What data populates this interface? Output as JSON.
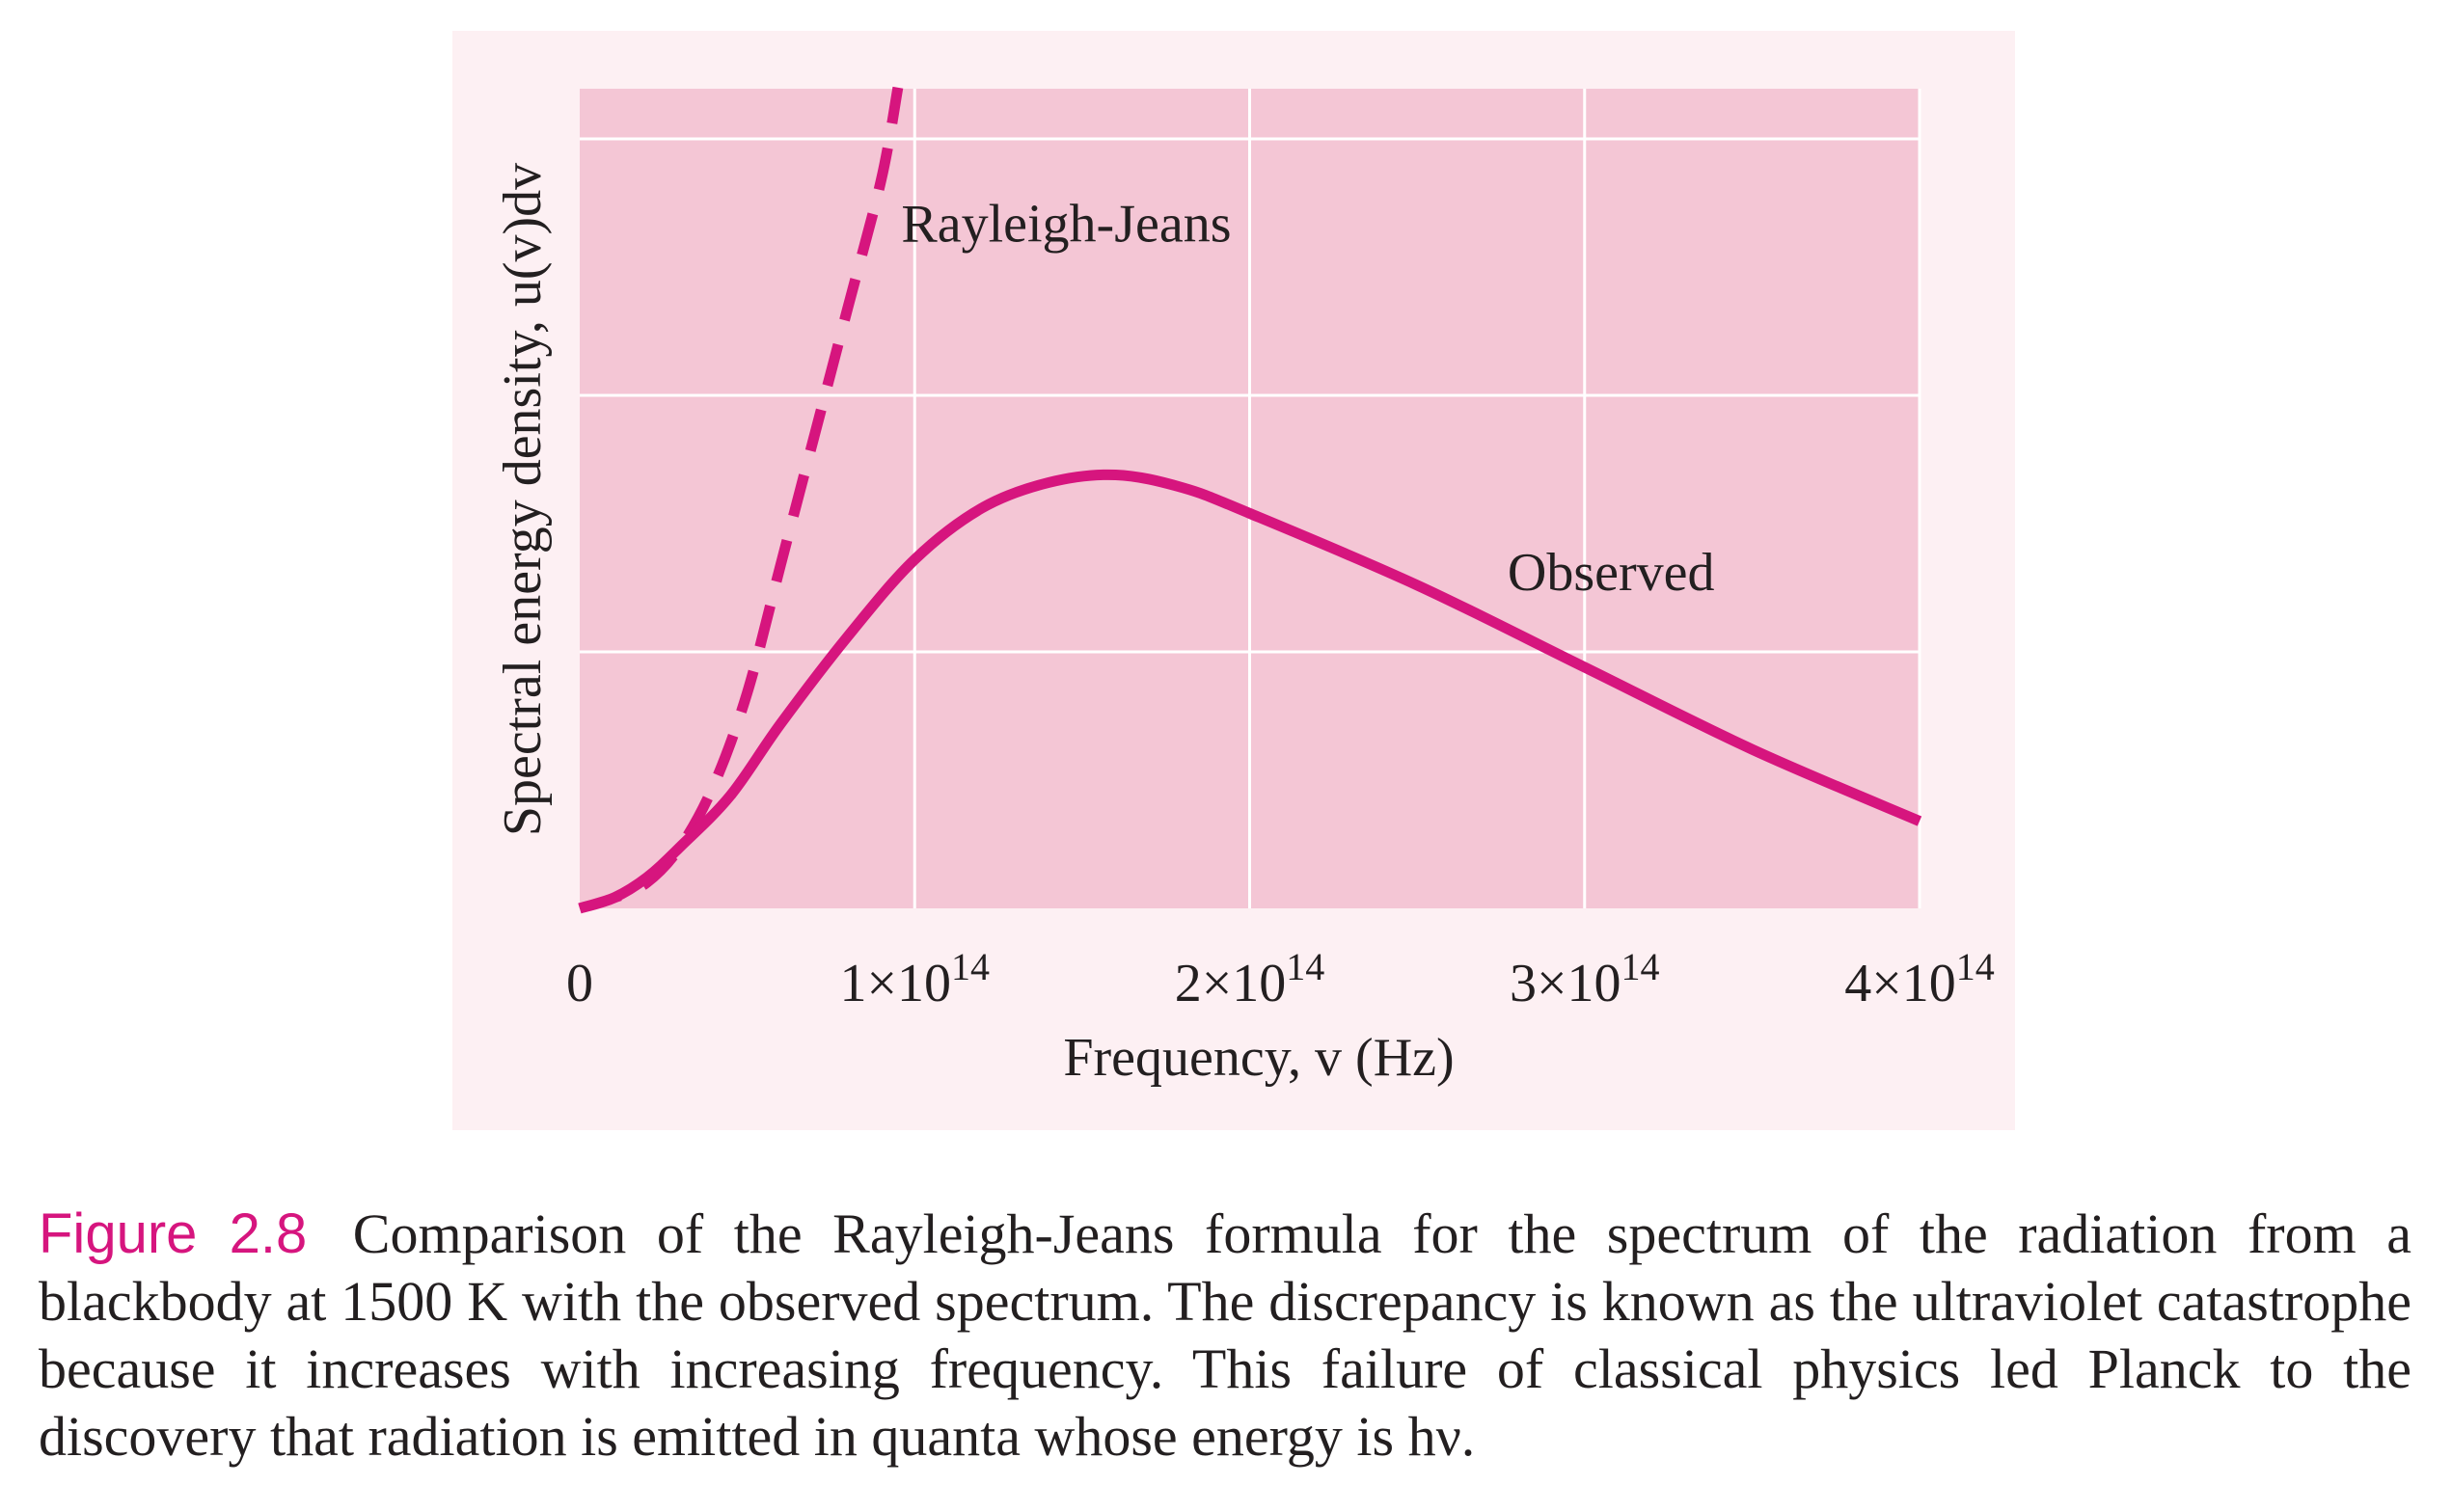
{
  "colors": {
    "panel_bg": "#fdf0f3",
    "plot_bg": "#f4c6d5",
    "grid": "#ffffff",
    "curve": "#d6157e",
    "text": "#231f20",
    "caption_label": "#d6157e"
  },
  "chart_data": {
    "type": "line",
    "title": "",
    "xlabel": "Frequency, v (Hz)",
    "ylabel": "Spectral energy density, u(v)dv",
    "xlim": [
      0,
      400000000000000
    ],
    "ylim": [
      0,
      1.5
    ],
    "grid": true,
    "x_ticks": [
      {
        "value": 0,
        "label": "0"
      },
      {
        "value": 100000000000000,
        "label": "1×10",
        "sup": "14"
      },
      {
        "value": 200000000000000,
        "label": "2×10",
        "sup": "14"
      },
      {
        "value": 300000000000000,
        "label": "3×10",
        "sup": "14"
      },
      {
        "value": 400000000000000,
        "label": "4×10",
        "sup": "14"
      }
    ],
    "y_grid": [
      0.5,
      1.0,
      1.5
    ],
    "series": [
      {
        "name": "Rayleigh-Jeans",
        "style": "dashed",
        "x": [
          0,
          10000000000000,
          20000000000000,
          30000000000000,
          40000000000000,
          50000000000000,
          60000000000000,
          70000000000000,
          80000000000000,
          90000000000000,
          95000000000000
        ],
        "y": [
          0.0,
          0.02,
          0.05,
          0.12,
          0.24,
          0.42,
          0.67,
          0.92,
          1.17,
          1.42,
          1.6
        ]
      },
      {
        "name": "Observed",
        "style": "solid",
        "x": [
          0,
          10000000000000,
          20000000000000,
          30000000000000,
          45000000000000,
          60000000000000,
          80000000000000,
          100000000000000,
          120000000000000,
          140000000000000,
          160000000000000,
          180000000000000,
          200000000000000,
          250000000000000,
          300000000000000,
          350000000000000,
          400000000000000
        ],
        "y": [
          0.0,
          0.02,
          0.06,
          0.12,
          0.22,
          0.36,
          0.53,
          0.68,
          0.78,
          0.83,
          0.845,
          0.82,
          0.77,
          0.63,
          0.47,
          0.31,
          0.17
        ]
      }
    ],
    "annotations": [
      {
        "text": "Rayleigh-Jeans",
        "x": 96000000000000,
        "y": 1.3
      },
      {
        "text": "Observed",
        "x": 277000000000000,
        "y": 0.62
      }
    ]
  },
  "caption": {
    "label": "Figure 2.8",
    "text": "Comparison of the Rayleigh-Jeans formula for the spectrum of the radiation from a blackbody at 1500 K with the observed spectrum. The discrepancy is known as the ultraviolet catastrophe because it increases with increasing frequency. This failure of classical physics led Planck to the discovery that radiation is emitted in quanta whose energy is hν."
  }
}
